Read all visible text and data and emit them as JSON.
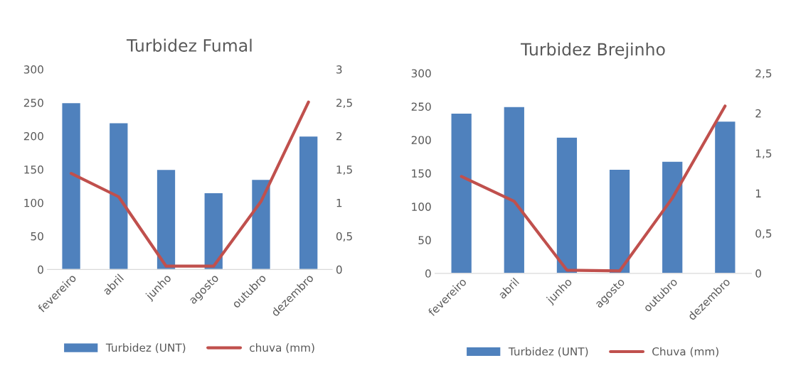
{
  "chart_data": [
    {
      "type": "bar",
      "title": "Turbidez Fumal",
      "categories": [
        "fevereiro",
        "abril",
        "junho",
        "agosto",
        "outubro",
        "dezembro"
      ],
      "series": [
        {
          "name": "Turbidez (UNT)",
          "color": "#4f81bd",
          "values": [
            250,
            220,
            150,
            115,
            135,
            200
          ]
        },
        {
          "name": "chuva (mm)",
          "type": "line",
          "axis": "y2",
          "color": "#c0504d",
          "values": [
            1.44,
            1.09,
            0.05,
            0.05,
            1.02,
            2.51
          ]
        }
      ],
      "ylim": [
        0,
        300
      ],
      "yticks": [
        0,
        50,
        100,
        150,
        200,
        250,
        300
      ],
      "y2lim": [
        0,
        3
      ],
      "y2ticks": [
        0,
        {
          "value": 0.5,
          "label": "0,5"
        },
        1,
        {
          "value": 1.5,
          "label": "1,5"
        },
        2,
        {
          "value": 2.5,
          "label": "2,5"
        },
        3
      ],
      "legend": "bottom",
      "grid": false
    },
    {
      "type": "bar",
      "title": "Turbidez Brejinho",
      "categories": [
        "fevereiro",
        "abril",
        "junho",
        "agosto",
        "outubro",
        "dezembro"
      ],
      "series": [
        {
          "name": "Turbidez (UNT)",
          "color": "#4f81bd",
          "values": [
            240,
            250,
            204,
            156,
            168,
            228
          ]
        },
        {
          "name": "Chuva (mm)",
          "type": "line",
          "axis": "y2",
          "color": "#c0504d",
          "values": [
            1.21,
            0.9,
            0.04,
            0.03,
            0.94,
            2.09
          ]
        }
      ],
      "ylim": [
        0,
        300
      ],
      "yticks": [
        0,
        50,
        100,
        150,
        200,
        250,
        300
      ],
      "y2lim": [
        0,
        2.5
      ],
      "y2ticks": [
        0,
        {
          "value": 0.5,
          "label": "0,5"
        },
        1,
        {
          "value": 1.5,
          "label": "1,5"
        },
        2,
        {
          "value": 2.5,
          "label": "2,5"
        }
      ],
      "legend": "bottom",
      "grid": false
    }
  ]
}
